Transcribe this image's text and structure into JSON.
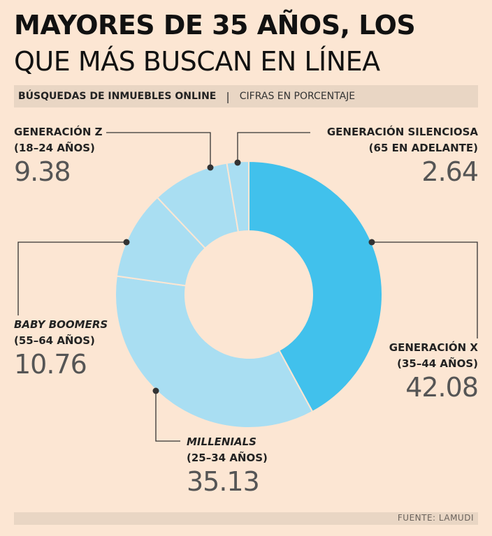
{
  "header": {
    "title_line1": "MAYORES DE 35 AÑOS, LOS",
    "title_line2": "QUE MÁS BUSCAN EN LÍNEA",
    "subtitle_bold": "BÚSQUEDAS DE INMUEBLES ONLINE",
    "subtitle_sep": "|",
    "subtitle_light": "CIFRAS EN PORCENTAJE"
  },
  "footer": {
    "source": "FUENTE: LAMUDI"
  },
  "labels": {
    "genz": {
      "name": "GENERACIÓN Z",
      "range": "(18–24 AÑOS)",
      "value": "9.38"
    },
    "silent": {
      "name": "GENERACIÓN SILENCIOSA",
      "range": "(65 EN ADELANTE)",
      "value": "2.64"
    },
    "boomers": {
      "name": "BABY BOOMERS",
      "range": "(55–64 AÑOS)",
      "value": "10.76"
    },
    "genx": {
      "name": "GENERACIÓN X",
      "range": "(35–44 AÑOS)",
      "value": "42.08"
    },
    "millenials": {
      "name": "MILLENIALS",
      "range": "(25–34 AÑOS)",
      "value": "35.13"
    }
  },
  "chart_data": {
    "type": "pie",
    "style": "donut",
    "title": "MAYORES DE 35 AÑOS, LOS QUE MÁS BUSCAN EN LÍNEA",
    "unit": "%",
    "slices": [
      {
        "key": "genx",
        "label": "GENERACIÓN X (35–44 AÑOS)",
        "value": 42.08,
        "color": "#41c1ec"
      },
      {
        "key": "millenials",
        "label": "MILLENIALS (25–34 AÑOS)",
        "value": 35.13,
        "color": "#a9def2"
      },
      {
        "key": "boomers",
        "label": "BABY BOOMERS (55–64 AÑOS)",
        "value": 10.76,
        "color": "#a9def2"
      },
      {
        "key": "genz",
        "label": "GENERACIÓN Z (18–24 AÑOS)",
        "value": 9.38,
        "color": "#a9def2"
      },
      {
        "key": "silent",
        "label": "GENERACIÓN SILENCIOSA (65 EN ADELANTE)",
        "value": 2.64,
        "color": "#a9def2"
      }
    ]
  }
}
